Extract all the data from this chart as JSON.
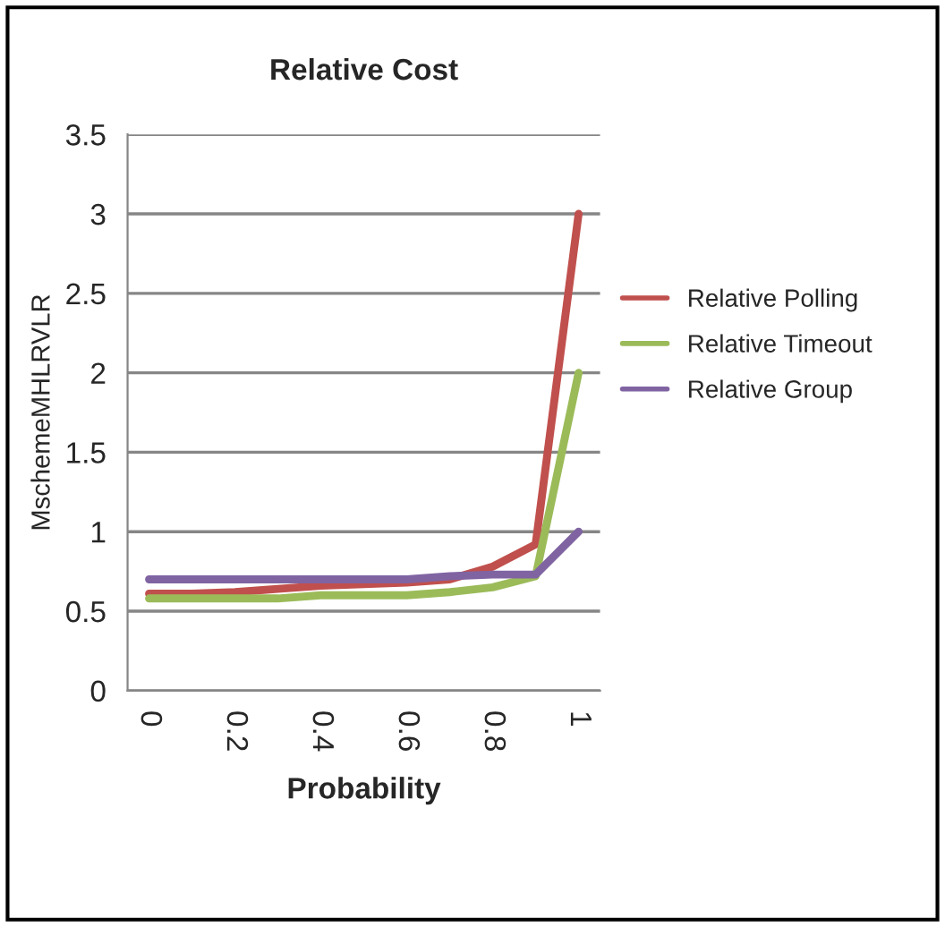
{
  "chart_data": {
    "type": "line",
    "title": "Relative Cost",
    "xlabel": "Probability",
    "ylabel": "MschemeMHLRVLR",
    "categories": [
      "0",
      null,
      "0.2",
      null,
      "0.4",
      null,
      "0.6",
      null,
      "0.8",
      null,
      "1"
    ],
    "series": [
      {
        "name": "Relative Polling",
        "color": "#c0504d",
        "values": [
          0.61,
          0.61,
          0.62,
          0.64,
          0.66,
          0.67,
          0.68,
          0.7,
          0.78,
          0.92,
          3
        ]
      },
      {
        "name": "Relative Timeout",
        "color": "#9bbb59",
        "values": [
          0.58,
          0.58,
          0.58,
          0.58,
          0.6,
          0.6,
          0.6,
          0.62,
          0.65,
          0.72,
          2
        ]
      },
      {
        "name": "Relative Group",
        "color": "#8064a2",
        "values": [
          0.7,
          0.7,
          0.7,
          0.7,
          0.7,
          0.7,
          0.7,
          0.72,
          0.73,
          0.73,
          1
        ]
      }
    ],
    "ylim": [
      0,
      3.5
    ],
    "yticks": [
      0,
      0.5,
      1,
      1.5,
      2,
      2.5,
      3,
      3.5
    ],
    "grid": "y",
    "legend": "right",
    "marker": "none",
    "line_style": "solid"
  }
}
